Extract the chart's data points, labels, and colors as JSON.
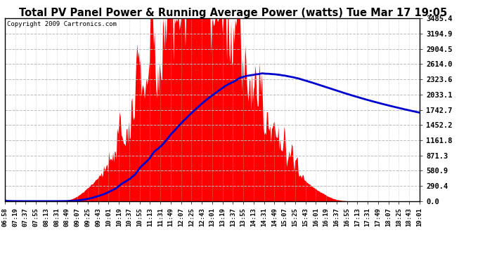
{
  "title": "Total PV Panel Power & Running Average Power (watts) Tue Mar 17 19:05",
  "copyright": "Copyright 2009 Cartronics.com",
  "y_ticks": [
    0.0,
    290.4,
    580.9,
    871.3,
    1161.8,
    1452.2,
    1742.7,
    2033.1,
    2323.6,
    2614.0,
    2904.5,
    3194.9,
    3485.4
  ],
  "x_labels": [
    "06:58",
    "07:19",
    "07:37",
    "07:55",
    "08:13",
    "08:31",
    "08:49",
    "09:07",
    "09:25",
    "09:43",
    "10:01",
    "10:19",
    "10:37",
    "10:55",
    "11:13",
    "11:31",
    "11:49",
    "12:07",
    "12:25",
    "12:43",
    "13:01",
    "13:19",
    "13:37",
    "13:55",
    "14:13",
    "14:31",
    "14:49",
    "15:07",
    "15:25",
    "15:43",
    "16:01",
    "16:19",
    "16:37",
    "16:55",
    "17:13",
    "17:31",
    "17:49",
    "18:07",
    "18:25",
    "18:43",
    "19:01"
  ],
  "background_color": "#ffffff",
  "plot_bg_color": "#ffffff",
  "grid_color": "#bbbbbb",
  "fill_color": "#ff0000",
  "line_color": "#0000cc",
  "title_fontsize": 11,
  "ymax": 3485.4,
  "ymin": 0.0
}
